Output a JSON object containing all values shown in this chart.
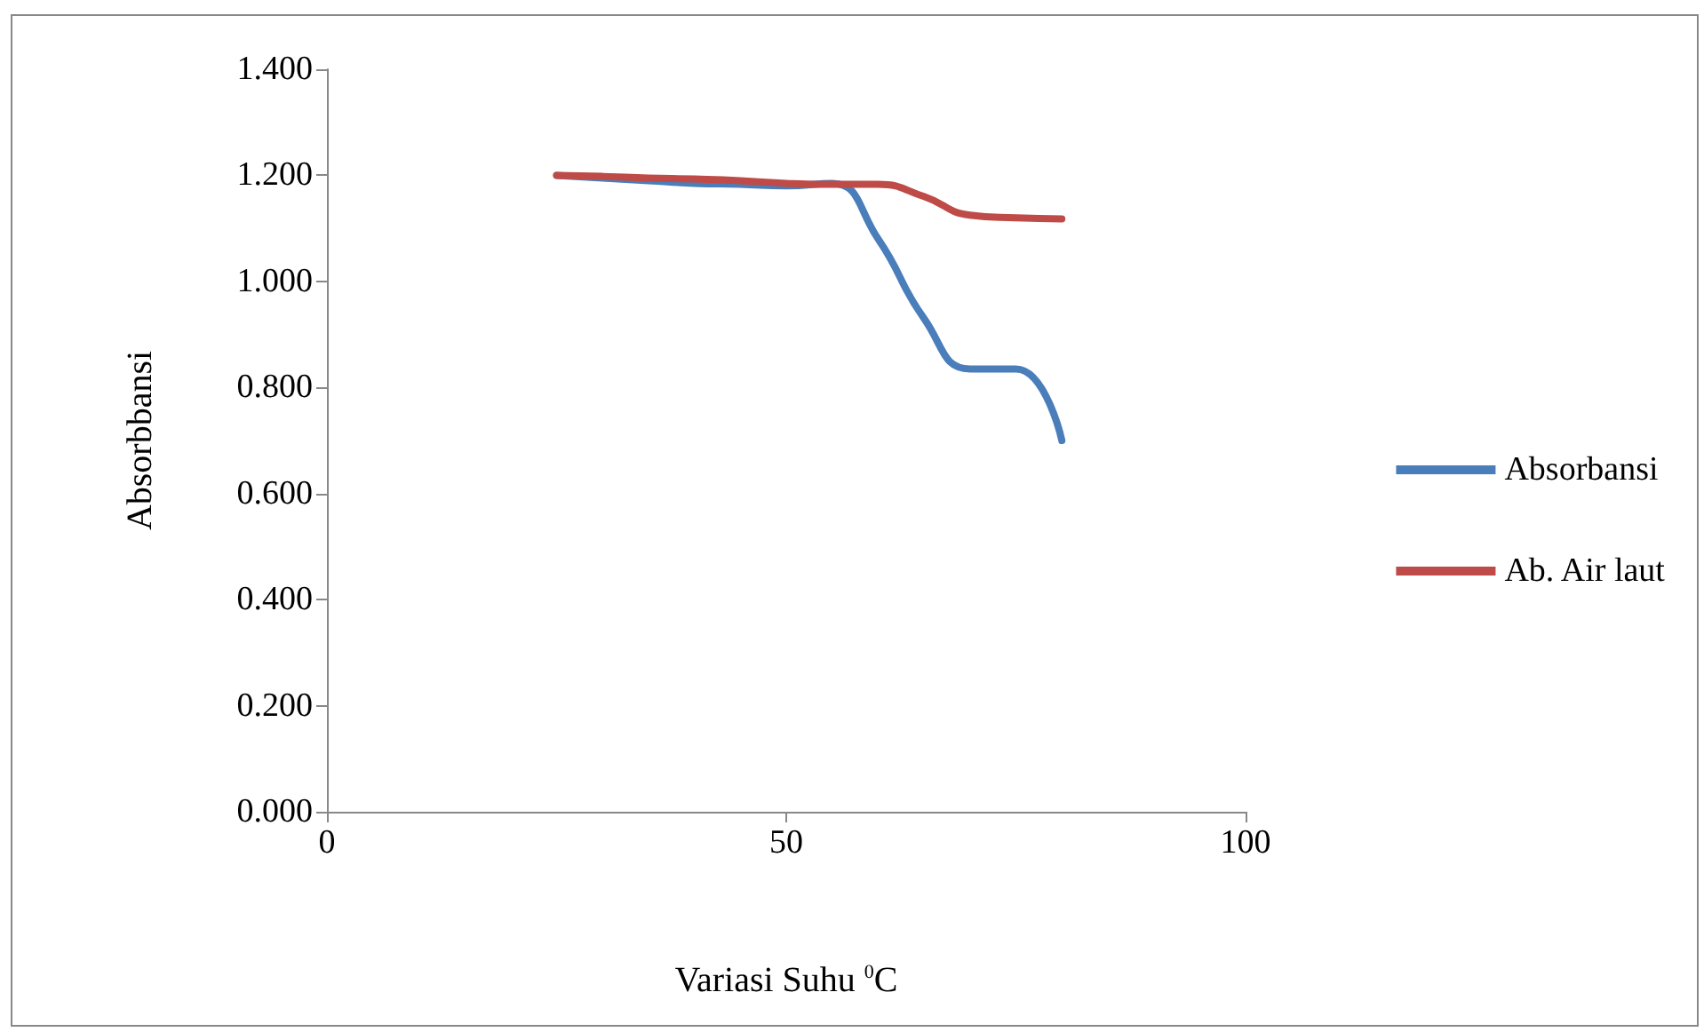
{
  "chart_data": {
    "type": "line",
    "xlabel": "Variasi Suhu $^{0}$C",
    "ylabel": "Absorbbansi",
    "series": [
      {
        "name": "Absorbansi",
        "color": "#4a7ebb",
        "x": [
          25,
          30,
          35,
          40,
          45,
          50,
          55,
          60,
          65,
          70,
          75,
          80
        ],
        "values": [
          1.2,
          1.195,
          1.19,
          1.185,
          1.183,
          1.18,
          1.185,
          1.08,
          0.93,
          0.835,
          0.835,
          0.7
        ]
      },
      {
        "name": "Ab. Air laut",
        "color": "#be4b48",
        "x": [
          25,
          30,
          35,
          40,
          45,
          50,
          55,
          60,
          65,
          70,
          75,
          80
        ],
        "values": [
          1.2,
          1.198,
          1.195,
          1.193,
          1.19,
          1.185,
          1.183,
          1.183,
          1.16,
          1.125,
          1.12,
          1.118
        ]
      }
    ],
    "xlim": [
      0,
      100
    ],
    "xticks": [
      0,
      50,
      100
    ],
    "ylim": [
      0,
      1.4
    ],
    "yticks": [
      {
        "value": 0,
        "label": "0.000"
      },
      {
        "value": 0.2,
        "label": "0.200"
      },
      {
        "value": 0.4,
        "label": "0.400"
      },
      {
        "value": 0.6,
        "label": "0.600"
      },
      {
        "value": 0.8,
        "label": "0.800"
      },
      {
        "value": 1,
        "label": "1.000"
      },
      {
        "value": 1.2,
        "label": "1.200"
      },
      {
        "value": 1.4,
        "label": "1.400"
      }
    ],
    "grid": false,
    "legend": "right",
    "marker": "none",
    "line_style": "solid"
  }
}
